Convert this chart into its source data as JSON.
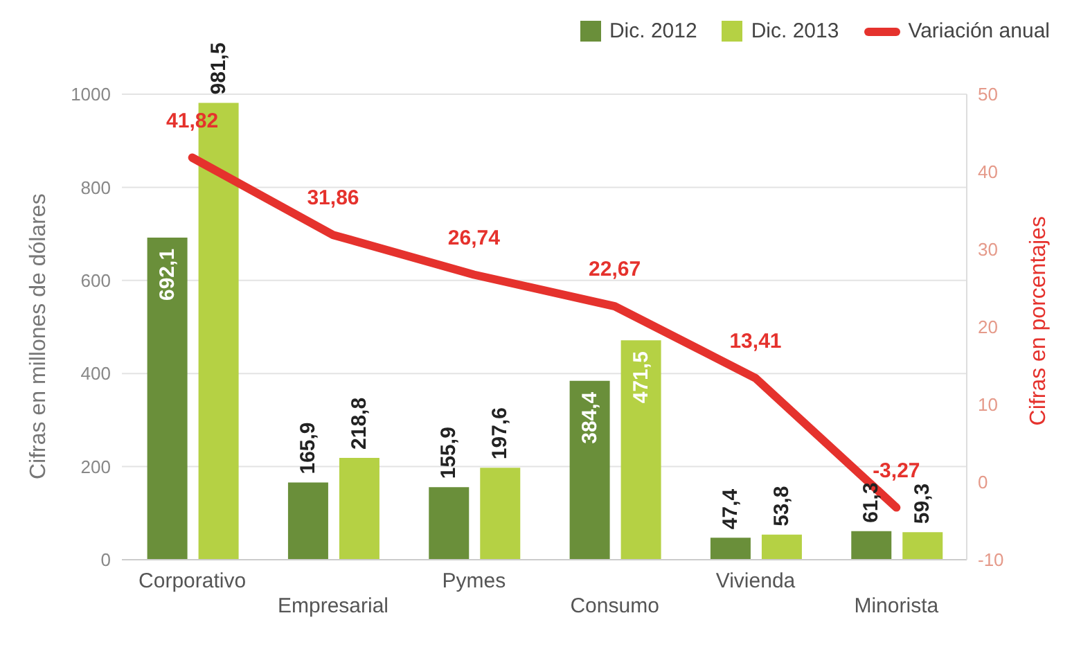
{
  "chart_data": {
    "type": "bar",
    "ylabel": "Cifras en millones de dólares",
    "y2label": "Cifras en porcentajes",
    "categories": [
      "Corporativo",
      "Empresarial",
      "Pymes",
      "Consumo",
      "Vivienda",
      "Minorista"
    ],
    "series": [
      {
        "name": "Dic. 2012",
        "color": "#6a8f3a",
        "values": [
          692.1,
          165.9,
          155.9,
          384.4,
          47.4,
          61.3
        ],
        "value_labels": [
          "692,1",
          "165,9",
          "155,9",
          "384,4",
          "47,4",
          "61,3"
        ]
      },
      {
        "name": "Dic. 2013",
        "color": "#b5d144",
        "values": [
          981.5,
          218.8,
          197.6,
          471.5,
          53.8,
          59.3
        ],
        "value_labels": [
          "981,5",
          "218,8",
          "197,6",
          "471,5",
          "53,8",
          "59,3"
        ]
      },
      {
        "name": "Variación anual",
        "type": "line",
        "axis": "y2",
        "color": "#e5322d",
        "values": [
          41.82,
          31.86,
          26.74,
          22.67,
          13.41,
          -3.27
        ],
        "value_labels": [
          "41,82",
          "31,86",
          "26,74",
          "22,67",
          "13,41",
          "-3,27"
        ]
      }
    ],
    "ylim": [
      0,
      1000
    ],
    "yticks": [
      0,
      200,
      400,
      600,
      800,
      1000
    ],
    "y2lim": [
      -10,
      50
    ],
    "y2ticks": [
      -10,
      0,
      10,
      20,
      30,
      40,
      50
    ],
    "grid": "y",
    "legend": "top right",
    "marker": "none"
  }
}
